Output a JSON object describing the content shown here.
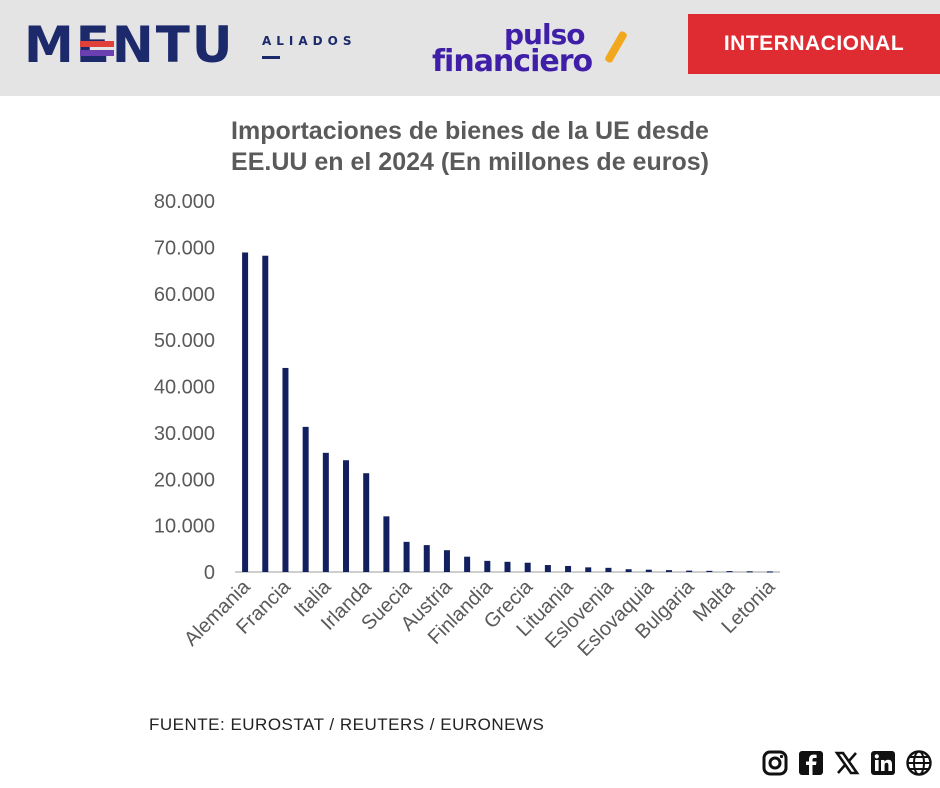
{
  "header": {
    "brand_main": "MENTU",
    "brand_sub": "ALIADOS",
    "partner_line1": "pulso",
    "partner_line2": "financiero",
    "section_label": "INTERNACIONAL",
    "colors": {
      "header_bg": "#e4e4e4",
      "brand": "#1c2a6b",
      "partner": "#3f1fa8",
      "section_bg": "#de2c32"
    }
  },
  "footer": {
    "source": "FUENTE: EUROSTAT / REUTERS / EURONEWS",
    "social_icons": [
      "instagram-icon",
      "facebook-icon",
      "x-icon",
      "linkedin-icon",
      "globe-icon"
    ]
  },
  "chart_data": {
    "type": "bar",
    "title": "Importaciones de bienes de la UE desde\nEE.UU en el 2024 (En millones de euros)",
    "xlabel": "",
    "ylabel": "",
    "ylim": [
      0,
      80000
    ],
    "yticks": [
      "0",
      "10.000",
      "20.000",
      "30.000",
      "40.000",
      "50.000",
      "60.000",
      "70.000",
      "80.000"
    ],
    "grid": false,
    "bar_color": "#132060",
    "categories": [
      "Alemania",
      "",
      "Francia",
      "",
      "Italia",
      "",
      "Irlanda",
      "",
      "Suecia",
      "",
      "Austria",
      "",
      "Finlandia",
      "",
      "Grecia",
      "",
      "Lituania",
      "",
      "Eslovenia",
      "",
      "Eslovaquia",
      "",
      "Bulgaria",
      "",
      "Malta",
      "",
      "Letonia"
    ],
    "values": [
      68900,
      68200,
      44000,
      31300,
      25700,
      24100,
      21300,
      12000,
      6500,
      5800,
      4700,
      3300,
      2400,
      2200,
      2000,
      1500,
      1300,
      1000,
      900,
      600,
      500,
      400,
      300,
      250,
      200,
      150,
      120
    ]
  }
}
